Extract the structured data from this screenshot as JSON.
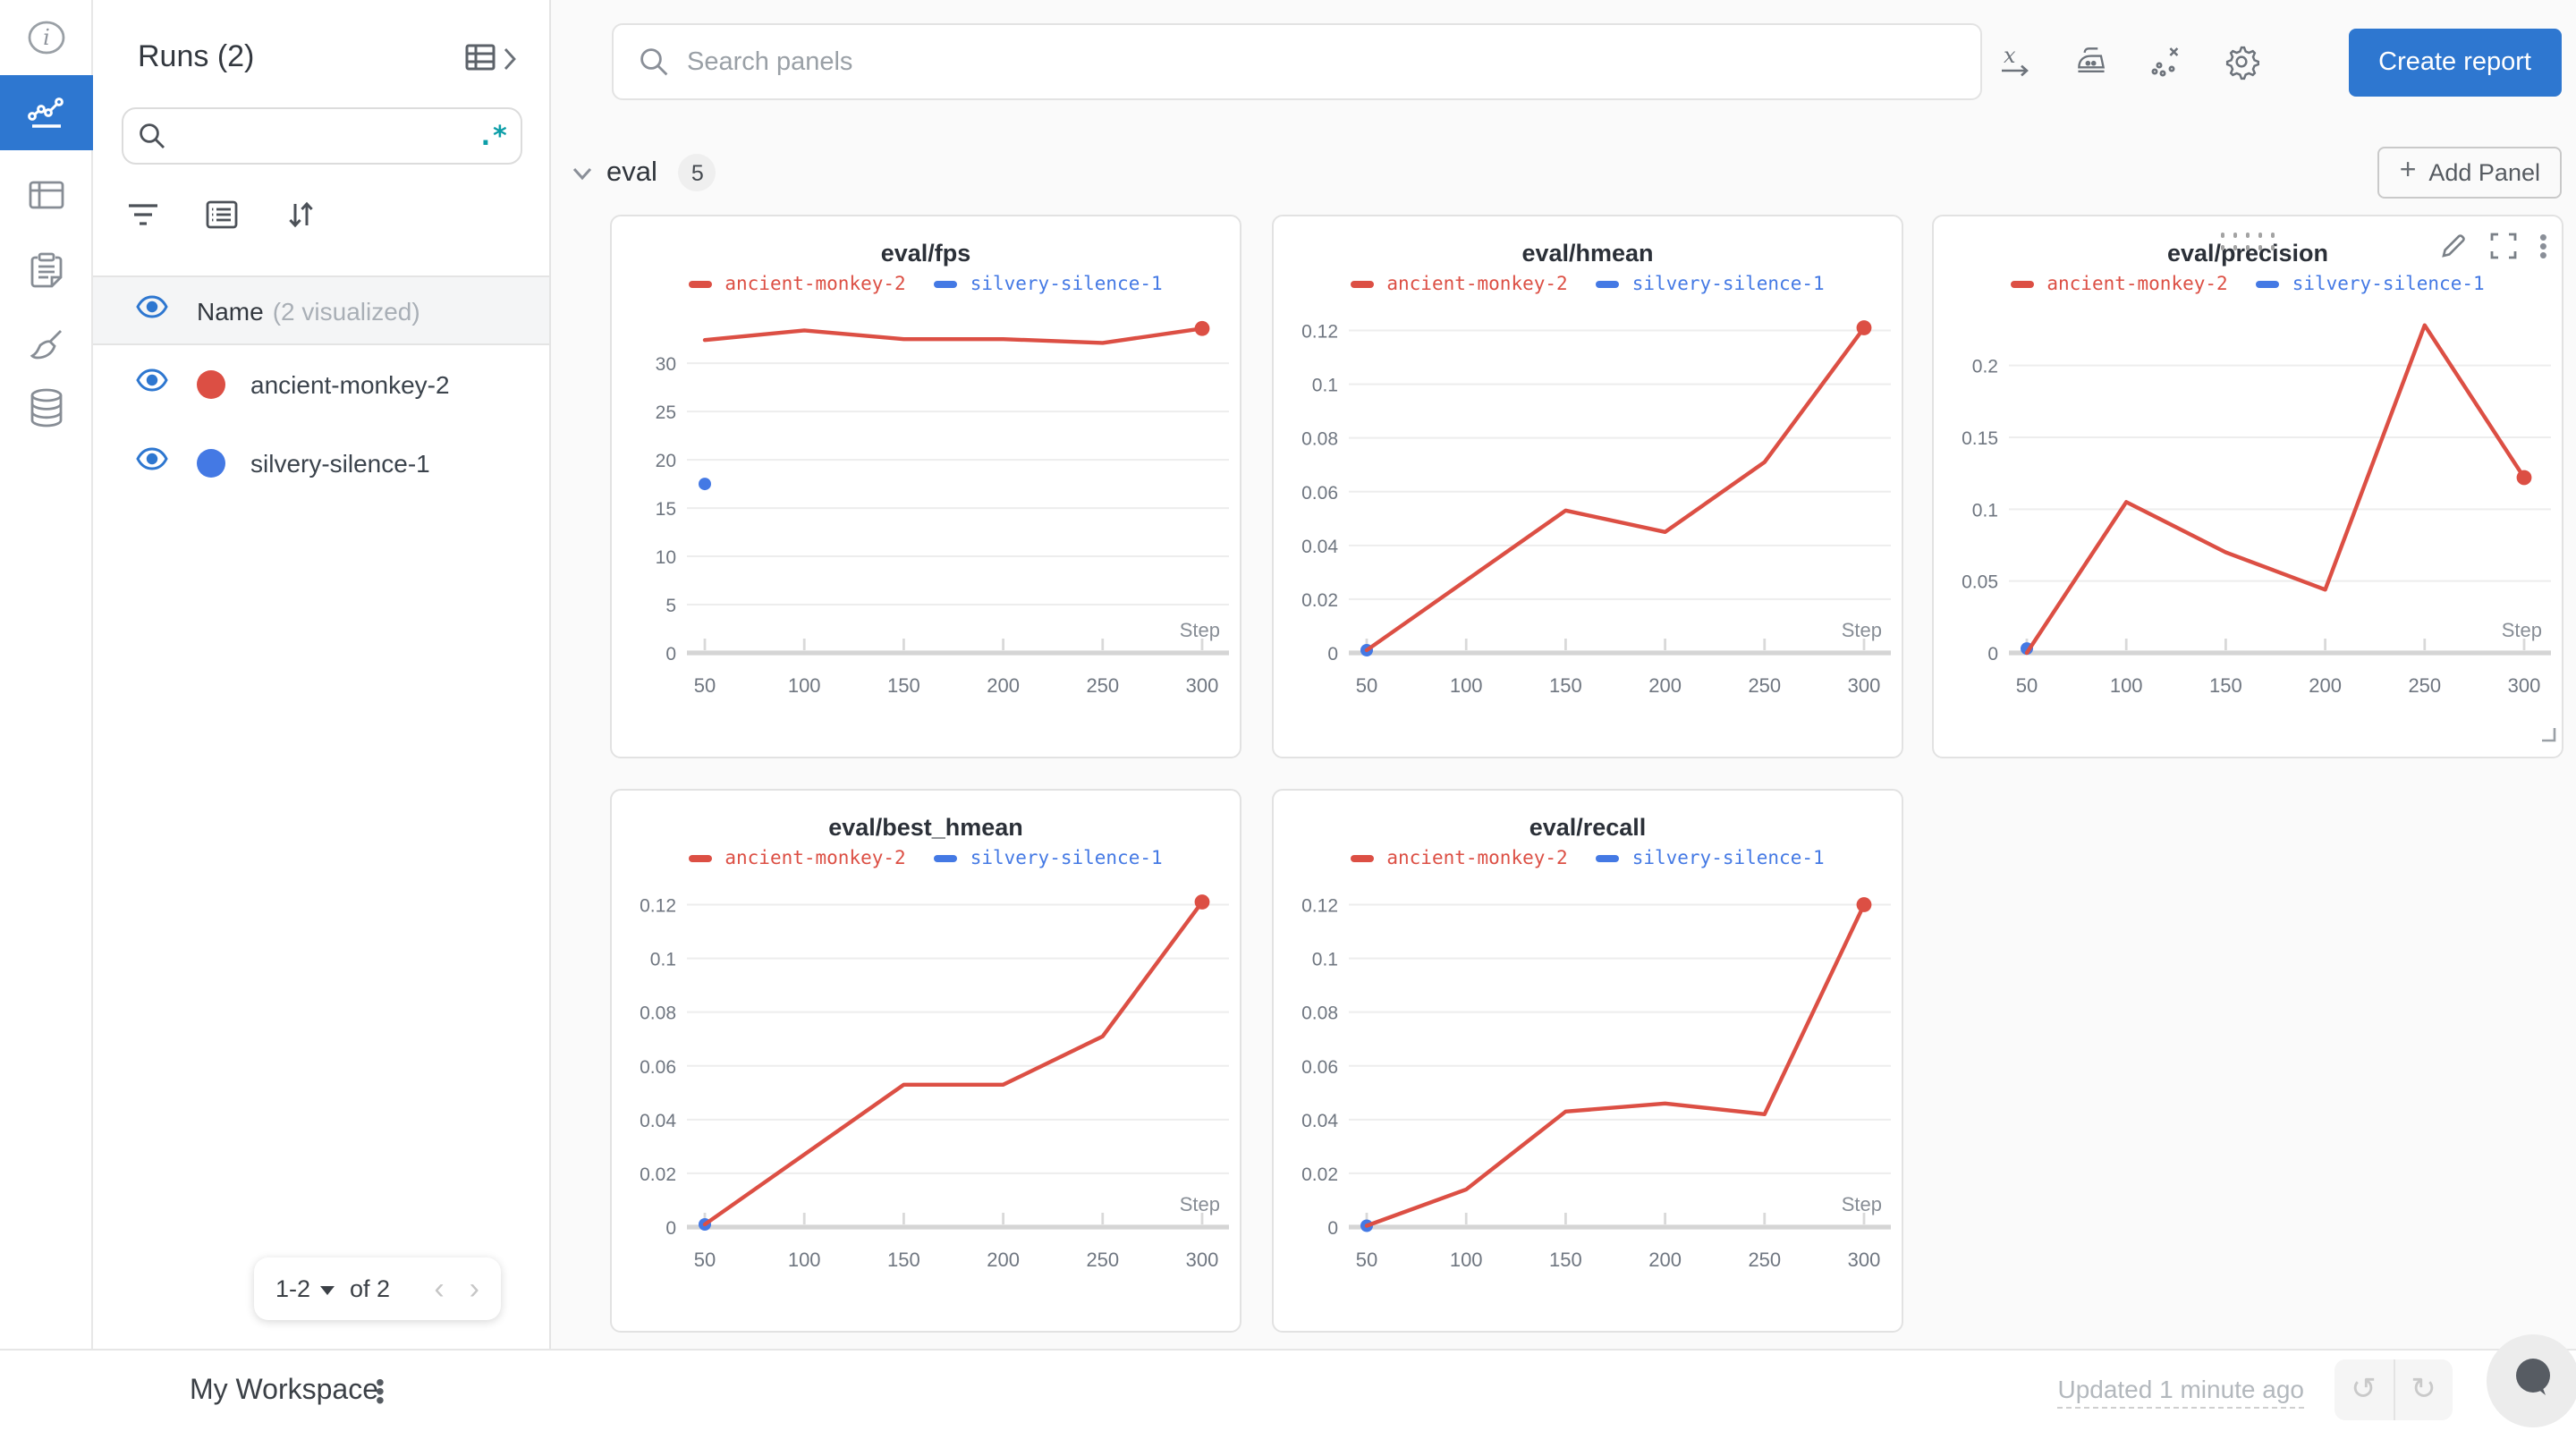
{
  "accent_color": "#2e77d0",
  "run_red": "#dc4f44",
  "run_blue": "#4479e4",
  "left_nav": {
    "items": [
      {
        "label": "overview",
        "icon": "info-icon",
        "active": false
      },
      {
        "label": "workspace-charts",
        "icon": "line-chart-icon",
        "active": true
      },
      {
        "label": "runs-table",
        "icon": "table-icon",
        "active": false
      },
      {
        "label": "logs",
        "icon": "clipboard-icon",
        "active": false
      },
      {
        "label": "sweeps",
        "icon": "broom-icon",
        "active": false
      },
      {
        "label": "artifacts",
        "icon": "database-icon",
        "active": false
      }
    ]
  },
  "runs_panel": {
    "title": "Runs (2)",
    "table_expand_icon": "table-expand-icon",
    "search_placeholder": "",
    "regex_icon_label": ".*",
    "toolbar_icons": [
      "filter-icon",
      "list-icon",
      "sort-icon"
    ],
    "columns_header": {
      "label": "Name",
      "sublabel": "(2 visualized)"
    },
    "runs": [
      {
        "name": "ancient-monkey-2",
        "color": "#dc4f44",
        "visible": true
      },
      {
        "name": "silvery-silence-1",
        "color": "#4479e4",
        "visible": true
      }
    ],
    "pagination": {
      "range": "1-2",
      "of_label": "of 2"
    }
  },
  "topbar": {
    "search_placeholder": "Search panels",
    "icons": [
      "x-axis-icon",
      "smoothing-iron-icon",
      "outliers-scatter-icon",
      "gear-icon"
    ],
    "create_report_label": "Create report"
  },
  "section": {
    "name": "eval",
    "panel_count": "5",
    "add_panel_label": "Add Panel"
  },
  "footer": {
    "workspace_label": "My Workspace",
    "updated_label": "Updated 1 minute ago"
  },
  "chart_data": [
    {
      "type": "line",
      "title": "eval/fps",
      "xlabel": "Step",
      "x_ticks": [
        50,
        100,
        150,
        200,
        250,
        300
      ],
      "xlim": [
        50,
        300
      ],
      "y_ticks": [
        0,
        5,
        10,
        15,
        20,
        25,
        30
      ],
      "ylim": [
        0,
        35.2
      ],
      "grid": true,
      "legend_position": "top",
      "series": [
        {
          "name": "ancient-monkey-2",
          "color": "#dc4f44",
          "end_dot": true,
          "points": [
            [
              50,
              32.4
            ],
            [
              100,
              33.4
            ],
            [
              150,
              32.5
            ],
            [
              200,
              32.5
            ],
            [
              250,
              32.1
            ],
            [
              300,
              33.6
            ]
          ]
        },
        {
          "name": "silvery-silence-1",
          "color": "#4479e4",
          "points": [
            [
              50,
              17.5
            ]
          ]
        }
      ]
    },
    {
      "type": "line",
      "title": "eval/hmean",
      "xlabel": "Step",
      "x_ticks": [
        50,
        100,
        150,
        200,
        250,
        300
      ],
      "xlim": [
        50,
        300
      ],
      "y_ticks": [
        0,
        0.02,
        0.04,
        0.06,
        0.08,
        0.1,
        0.12
      ],
      "ylim": [
        0,
        0.1265
      ],
      "grid": true,
      "legend_position": "top",
      "series": [
        {
          "name": "ancient-monkey-2",
          "color": "#dc4f44",
          "end_dot": true,
          "points": [
            [
              50,
              0.001
            ],
            [
              150,
              0.053
            ],
            [
              200,
              0.045
            ],
            [
              250,
              0.071
            ],
            [
              300,
              0.121
            ]
          ]
        },
        {
          "name": "silvery-silence-1",
          "color": "#4479e4",
          "points": [
            [
              50,
              0.001
            ]
          ]
        }
      ]
    },
    {
      "type": "line",
      "title": "eval/precision",
      "xlabel": "Step",
      "hover": true,
      "x_ticks": [
        50,
        100,
        150,
        200,
        250,
        300
      ],
      "xlim": [
        50,
        300
      ],
      "y_ticks": [
        0,
        0.05,
        0.1,
        0.15,
        0.2
      ],
      "ylim": [
        0,
        0.2365
      ],
      "grid": true,
      "legend_position": "top",
      "series": [
        {
          "name": "ancient-monkey-2",
          "color": "#dc4f44",
          "end_dot": true,
          "points": [
            [
              50,
              0
            ],
            [
              100,
              0.105
            ],
            [
              150,
              0.07
            ],
            [
              200,
              0.044
            ],
            [
              250,
              0.228
            ],
            [
              300,
              0.122
            ]
          ]
        },
        {
          "name": "silvery-silence-1",
          "color": "#4479e4",
          "points": [
            [
              50,
              0.003
            ]
          ]
        }
      ]
    },
    {
      "type": "line",
      "title": "eval/best_hmean",
      "xlabel": "Step",
      "x_ticks": [
        50,
        100,
        150,
        200,
        250,
        300
      ],
      "xlim": [
        50,
        300
      ],
      "y_ticks": [
        0,
        0.02,
        0.04,
        0.06,
        0.08,
        0.1,
        0.12
      ],
      "ylim": [
        0,
        0.1265
      ],
      "grid": true,
      "legend_position": "top",
      "series": [
        {
          "name": "ancient-monkey-2",
          "color": "#dc4f44",
          "end_dot": true,
          "points": [
            [
              50,
              0.001
            ],
            [
              150,
              0.053
            ],
            [
              200,
              0.053
            ],
            [
              250,
              0.071
            ],
            [
              300,
              0.121
            ]
          ]
        },
        {
          "name": "silvery-silence-1",
          "color": "#4479e4",
          "points": [
            [
              50,
              0.001
            ]
          ]
        }
      ]
    },
    {
      "type": "line",
      "title": "eval/recall",
      "xlabel": "Step",
      "x_ticks": [
        50,
        100,
        150,
        200,
        250,
        300
      ],
      "xlim": [
        50,
        300
      ],
      "y_ticks": [
        0,
        0.02,
        0.04,
        0.06,
        0.08,
        0.1,
        0.12
      ],
      "ylim": [
        0,
        0.1265
      ],
      "grid": true,
      "legend_position": "top",
      "series": [
        {
          "name": "ancient-monkey-2",
          "color": "#dc4f44",
          "end_dot": true,
          "points": [
            [
              50,
              0.0005
            ],
            [
              100,
              0.014
            ],
            [
              150,
              0.043
            ],
            [
              200,
              0.046
            ],
            [
              250,
              0.042
            ],
            [
              300,
              0.12
            ]
          ]
        },
        {
          "name": "silvery-silence-1",
          "color": "#4479e4",
          "points": [
            [
              50,
              0.0005
            ]
          ]
        }
      ]
    }
  ]
}
